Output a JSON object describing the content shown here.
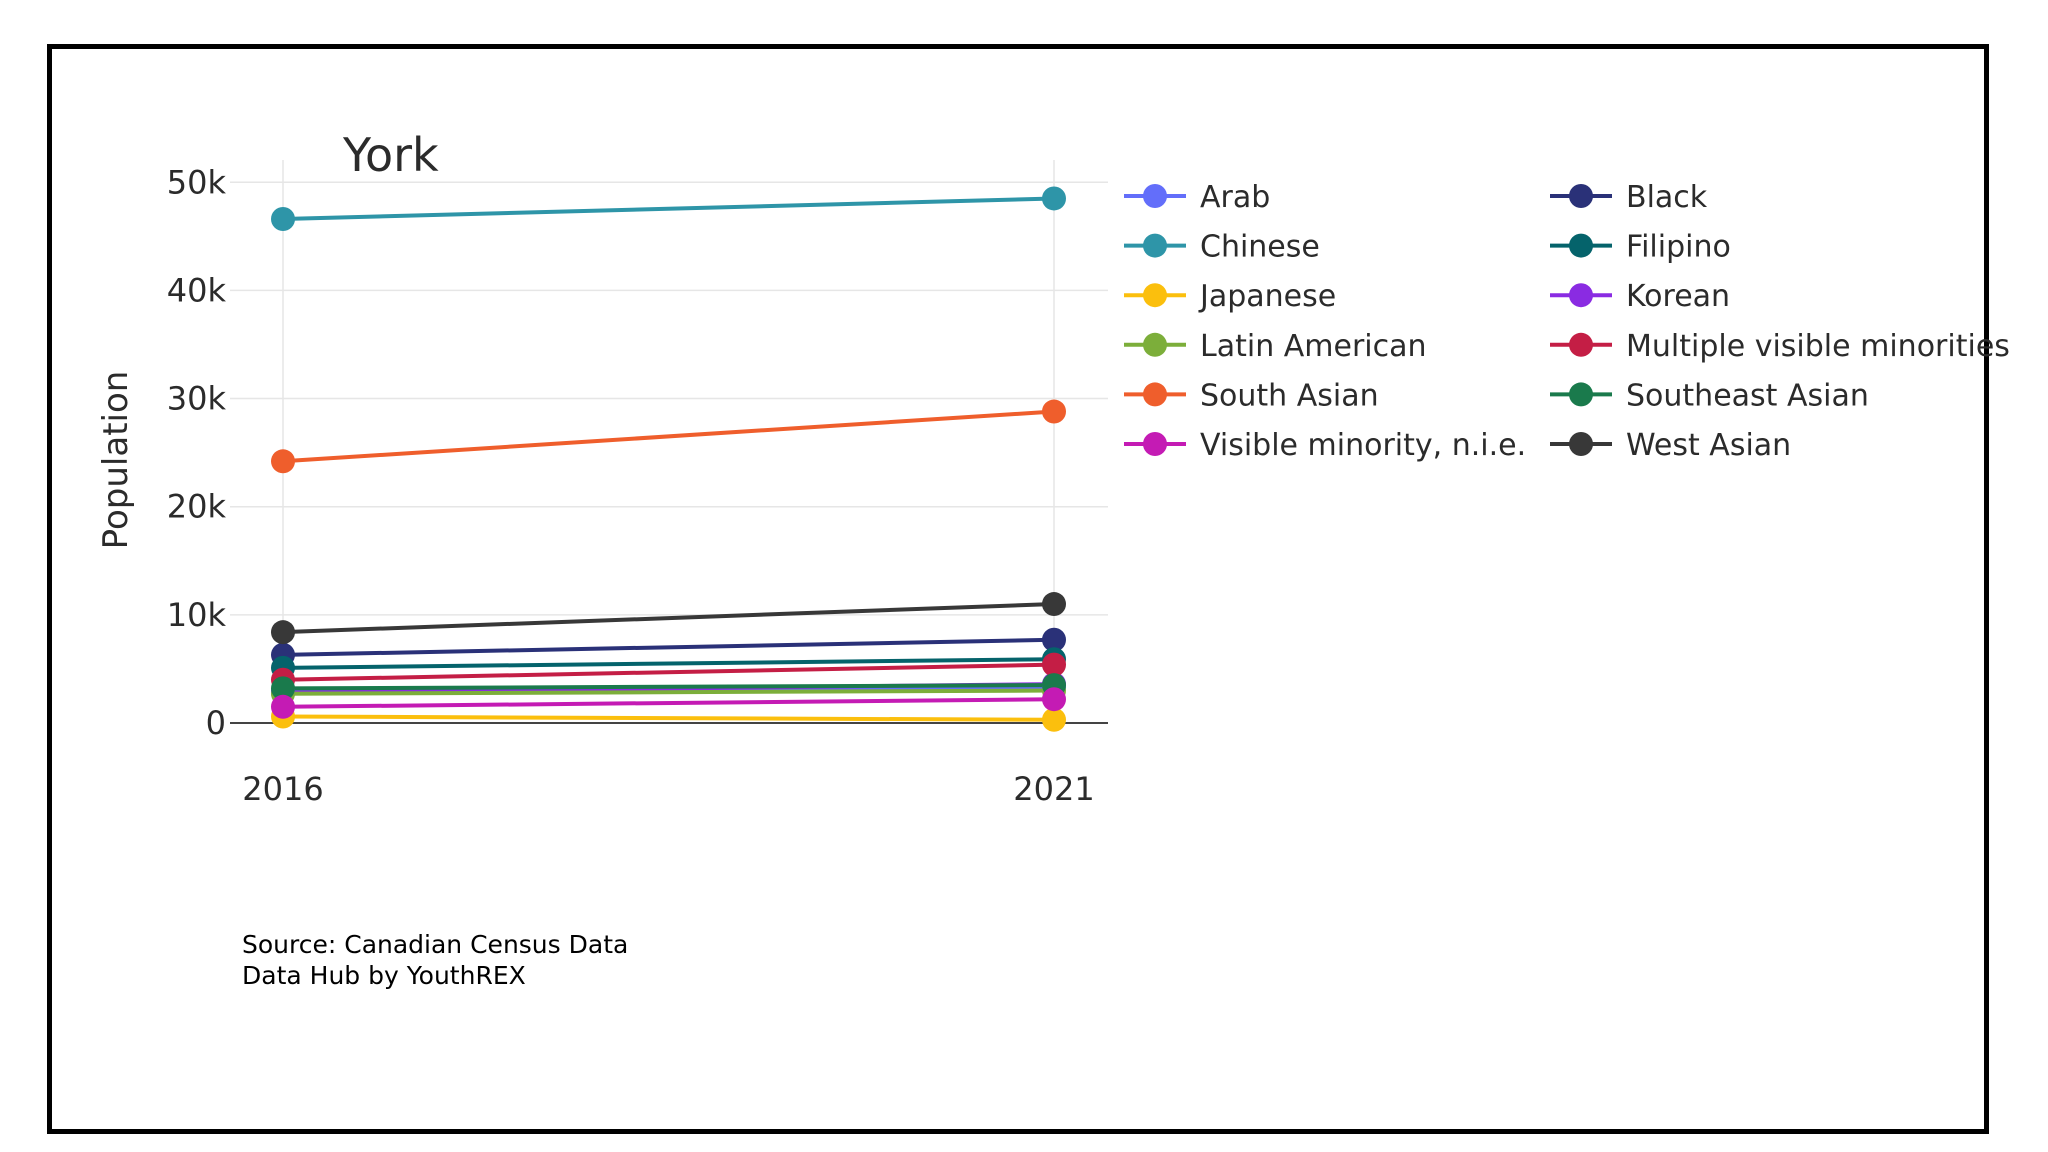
{
  "chart_data": {
    "type": "line",
    "title": "York",
    "xlabel": "",
    "ylabel": "Population",
    "x": [
      "2016",
      "2021"
    ],
    "ylim": [
      0,
      52000
    ],
    "yticks": [
      0,
      10000,
      20000,
      30000,
      40000,
      50000
    ],
    "ytick_labels": [
      "0",
      "10k",
      "20k",
      "30k",
      "40k",
      "50k"
    ],
    "grid": true,
    "legend_position": "right",
    "legend_columns": 2,
    "series": [
      {
        "name": "Arab",
        "color": "#636efa",
        "values": [
          3000,
          3300
        ]
      },
      {
        "name": "Black",
        "color": "#2a3178",
        "values": [
          6300,
          7700
        ]
      },
      {
        "name": "Chinese",
        "color": "#2e95a8",
        "values": [
          46600,
          48500
        ]
      },
      {
        "name": "Filipino",
        "color": "#05636b",
        "values": [
          5100,
          5900
        ]
      },
      {
        "name": "Japanese",
        "color": "#fbbf0d",
        "values": [
          600,
          300
        ]
      },
      {
        "name": "Korean",
        "color": "#8a2be2",
        "values": [
          2800,
          3600
        ]
      },
      {
        "name": "Latin American",
        "color": "#7cae3a",
        "values": [
          2700,
          3000
        ]
      },
      {
        "name": "Multiple visible minorities",
        "color": "#c41e45",
        "values": [
          4000,
          5400
        ]
      },
      {
        "name": "South Asian",
        "color": "#ef5e2c",
        "values": [
          24200,
          28800
        ]
      },
      {
        "name": "Southeast Asian",
        "color": "#1a7a4c",
        "values": [
          3200,
          3500
        ]
      },
      {
        "name": "Visible minority, n.i.e.",
        "color": "#c41bb4",
        "values": [
          1500,
          2200
        ]
      },
      {
        "name": "West Asian",
        "color": "#383838",
        "values": [
          8400,
          11000
        ]
      }
    ]
  },
  "source": {
    "line1": "Source: Canadian Census Data",
    "line2": "Data Hub by YouthREX"
  }
}
